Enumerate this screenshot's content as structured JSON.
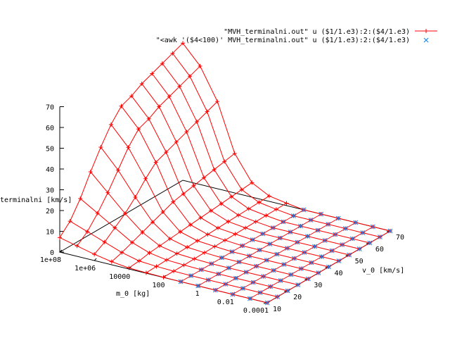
{
  "chart_data": {
    "type": "surface-3d",
    "xlabel": "m_0 [kg]",
    "ylabel": "v_0 [km/s]",
    "zlabel": "terminalni [km/s]",
    "x_ticks": [
      "1e+08",
      "1e+06",
      "10000",
      "100",
      "1",
      "0.01",
      "0.0001"
    ],
    "y_ticks": [
      "10",
      "20",
      "30",
      "40",
      "50",
      "60",
      "70"
    ],
    "z_ticks": [
      "0",
      "10",
      "20",
      "30",
      "40",
      "50",
      "60",
      "70"
    ],
    "x_tick_log10": [
      8,
      6,
      4,
      2,
      0,
      -2,
      -4
    ],
    "y_tick_values": [
      10,
      20,
      30,
      40,
      50,
      60,
      70
    ],
    "z_tick_values": [
      0,
      10,
      20,
      30,
      40,
      50,
      60,
      70
    ],
    "xlim_log10": [
      -4,
      8
    ],
    "ylim": [
      10,
      70
    ],
    "zlim": [
      0,
      70
    ],
    "grid_log10_m": [
      8,
      7,
      6,
      5,
      4,
      3,
      2,
      1,
      0,
      -1,
      -2,
      -3,
      -4
    ],
    "grid_v": [
      10,
      15,
      20,
      25,
      30,
      35,
      40,
      45,
      50,
      55,
      60,
      65,
      70
    ],
    "legend_position": "top-right",
    "series": [
      {
        "name": "\"MVH_terminalni.out\" u ($1/1.e3):2:($4/1.e3)",
        "color": "#ff0000",
        "marker": "plus",
        "z": [
          [
            7,
            12,
            20,
            30,
            39,
            47,
            53,
            55,
            58,
            60,
            62,
            64,
            66
          ],
          [
            5,
            9,
            15,
            22,
            30,
            38,
            44,
            46,
            49,
            51,
            53,
            55,
            57
          ],
          [
            3,
            6,
            10,
            14,
            19,
            25,
            30,
            32,
            34,
            36,
            38,
            40,
            42
          ],
          [
            1.5,
            3,
            5,
            7,
            9,
            11,
            13,
            14,
            15,
            16,
            17,
            18,
            19
          ],
          [
            0.5,
            1,
            2,
            2.5,
            3,
            3.5,
            4,
            4.5,
            5,
            5.5,
            6,
            6.5,
            7
          ],
          [
            0.2,
            0.4,
            0.6,
            0.8,
            1,
            1.2,
            1.4,
            1.6,
            1.8,
            2,
            2.2,
            2.4,
            2.6
          ],
          [
            0.1,
            0.15,
            0.2,
            0.3,
            0.4,
            0.5,
            0.6,
            0.7,
            0.8,
            0.9,
            1,
            1.1,
            1.2
          ],
          [
            0,
            0,
            0,
            0,
            0,
            0,
            0,
            0,
            0,
            0,
            0,
            0,
            0
          ],
          [
            0,
            0,
            0,
            0,
            0,
            0,
            0,
            0,
            0,
            0,
            0,
            0,
            0
          ],
          [
            0,
            0,
            0,
            0,
            0,
            0,
            0,
            0,
            0,
            0,
            0,
            0,
            0
          ],
          [
            0,
            0,
            0,
            0,
            0,
            0,
            0,
            0,
            0,
            0,
            0,
            0,
            0
          ],
          [
            0,
            0,
            0,
            0,
            0,
            0,
            0,
            0,
            0,
            0,
            0,
            0,
            0
          ],
          [
            0,
            0,
            0,
            0,
            0,
            0,
            0,
            0,
            0,
            0,
            0,
            0,
            0
          ]
        ]
      },
      {
        "name": "\"<awk '($4<100)' MVH_terminalni.out\" u ($1/1.e3):2:($4/1.e3)",
        "color": "#0080ff",
        "marker": "cross",
        "note_values": "points where z < 0.1 (flat region)"
      }
    ]
  }
}
